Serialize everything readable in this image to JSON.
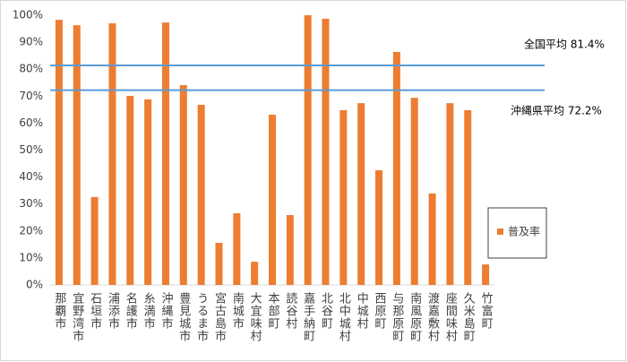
{
  "chart_data": {
    "type": "bar",
    "categories": [
      "那覇市",
      "宜野湾市",
      "石垣市",
      "浦添市",
      "名護市",
      "糸満市",
      "沖縄市",
      "豊見城市",
      "うるま市",
      "宮古島市",
      "南城市",
      "大宜味村",
      "本部町",
      "読谷村",
      "嘉手納町",
      "北谷町",
      "北中城村",
      "中城村",
      "西原町",
      "与那原町",
      "南風原町",
      "渡嘉敷村",
      "座間味村",
      "久米島町",
      "竹富町"
    ],
    "series": [
      {
        "name": "普及率",
        "color": "#ed7d31",
        "values": [
          98.3,
          96.3,
          32.6,
          97.0,
          70.1,
          68.8,
          97.3,
          74.1,
          66.8,
          15.6,
          26.6,
          8.6,
          63.1,
          25.9,
          100,
          98.7,
          64.8,
          67.4,
          42.5,
          86.4,
          69.4,
          33.9,
          67.4,
          64.8,
          7.6
        ]
      }
    ],
    "reference_lines": [
      {
        "label": "全国平均 81.4%",
        "value": 81.4,
        "color": "#5b9bd5"
      },
      {
        "label": "沖縄県平均 72.2%",
        "value": 72.2,
        "color": "#5b9bd5"
      }
    ],
    "ylim": [
      0,
      100
    ],
    "yticks": [
      {
        "value": 0,
        "label": "0%"
      },
      {
        "value": 10,
        "label": "10%"
      },
      {
        "value": 20,
        "label": "20%"
      },
      {
        "value": 30,
        "label": "30%"
      },
      {
        "value": 40,
        "label": "40%"
      },
      {
        "value": 50,
        "label": "50%"
      },
      {
        "value": 60,
        "label": "60%"
      },
      {
        "value": 70,
        "label": "70%"
      },
      {
        "value": 80,
        "label": "80%"
      },
      {
        "value": 90,
        "label": "90%"
      },
      {
        "value": 100,
        "label": "100%"
      }
    ],
    "grid": false,
    "legend": "right"
  }
}
